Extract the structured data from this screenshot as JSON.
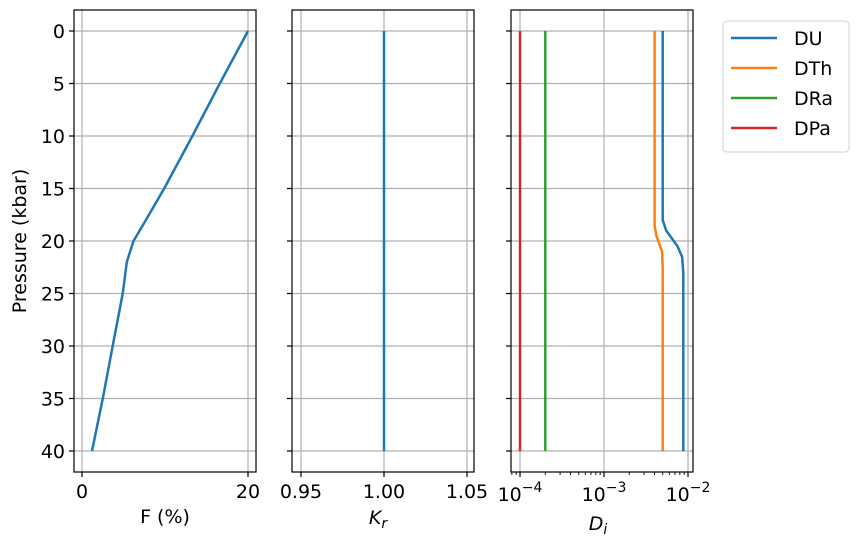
{
  "chart_data": [
    {
      "type": "line",
      "panel": "left",
      "xlabel": "F (%)",
      "ylabel": "Pressure (kbar)",
      "xlim": [
        -0.7,
        21
      ],
      "ylim": [
        42,
        -2
      ],
      "y_inverted": true,
      "grid": true,
      "xticks": [
        0,
        20
      ],
      "yticks": [
        0,
        5,
        10,
        15,
        20,
        25,
        30,
        35,
        40
      ],
      "series": [
        {
          "name": "F",
          "color": "#1f77b4",
          "points": [
            [
              20,
              0
            ],
            [
              16.6,
              5
            ],
            [
              13.3,
              10
            ],
            [
              9.9,
              15
            ],
            [
              7.7,
              18
            ],
            [
              6.2,
              20
            ],
            [
              5.4,
              22
            ],
            [
              4.9,
              25
            ],
            [
              3.7,
              30
            ],
            [
              2.5,
              35
            ],
            [
              1.2,
              40
            ]
          ]
        }
      ]
    },
    {
      "type": "line",
      "panel": "middle",
      "xlabel": "K_r",
      "xlim": [
        0.945,
        1.055
      ],
      "ylim": [
        42,
        -2
      ],
      "y_inverted": true,
      "grid": true,
      "xticks": [
        "0.95",
        "1.00",
        "1.05"
      ],
      "series": [
        {
          "name": "Kr",
          "color": "#1f77b4",
          "points": [
            [
              1.0,
              0
            ],
            [
              1.0,
              40
            ]
          ]
        }
      ]
    },
    {
      "type": "line",
      "panel": "right",
      "xlabel": "D_i",
      "xscale": "log",
      "xlim": [
        7.8e-05,
        0.0115
      ],
      "ylim": [
        42,
        -2
      ],
      "y_inverted": true,
      "grid": true,
      "xticks": [
        "10^-4",
        "10^-3",
        "10^-2"
      ],
      "legend_position": "outside upper right",
      "series": [
        {
          "name": "DU",
          "color": "#1f77b4",
          "points": [
            [
              0.005,
              0
            ],
            [
              0.005,
              18
            ],
            [
              0.0055,
              19
            ],
            [
              0.0075,
              20.5
            ],
            [
              0.0085,
              21.5
            ],
            [
              0.0088,
              23
            ],
            [
              0.0088,
              40
            ]
          ]
        },
        {
          "name": "DTh",
          "color": "#ff7f0e",
          "points": [
            [
              0.004,
              0
            ],
            [
              0.004,
              18.5
            ],
            [
              0.0042,
              19.5
            ],
            [
              0.0049,
              21
            ],
            [
              0.005,
              22.5
            ],
            [
              0.005,
              40
            ]
          ]
        },
        {
          "name": "DRa",
          "color": "#2ca02c",
          "points": [
            [
              0.0002,
              0
            ],
            [
              0.0002,
              40
            ]
          ]
        },
        {
          "name": "DPa",
          "color": "#d62728",
          "points": [
            [
              0.0001,
              0
            ],
            [
              0.0001,
              40
            ]
          ]
        }
      ]
    }
  ],
  "labels": {
    "ylabel": "Pressure (kbar)",
    "p1_xlabel": "F (%)",
    "p2_xlabel_main": "K",
    "p2_xlabel_sub": "r",
    "p3_xlabel_main": "D",
    "p3_xlabel_sub": "i",
    "yticks": [
      "0",
      "5",
      "10",
      "15",
      "20",
      "25",
      "30",
      "35",
      "40"
    ],
    "p1_xticks": [
      "0",
      "20"
    ],
    "p2_xticks": [
      "0.95",
      "1.00",
      "1.05"
    ],
    "p3_xticks_base": "10",
    "p3_xticks_exp": [
      "−4",
      "−3",
      "−2"
    ]
  },
  "legend": {
    "items": [
      {
        "label": "DU",
        "color": "#1f77b4"
      },
      {
        "label": "DTh",
        "color": "#ff7f0e"
      },
      {
        "label": "DRa",
        "color": "#2ca02c"
      },
      {
        "label": "DPa",
        "color": "#d62728"
      }
    ]
  }
}
